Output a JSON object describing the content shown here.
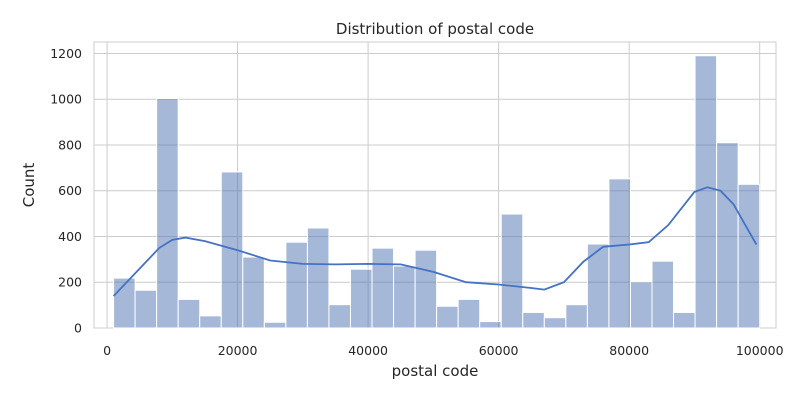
{
  "chart_data": {
    "type": "bar",
    "title": "Distribution of postal code",
    "xlabel": "postal code",
    "ylabel": "Count",
    "xlim": [
      -2000,
      102500
    ],
    "ylim": [
      0,
      1250
    ],
    "xticks": [
      0,
      20000,
      40000,
      60000,
      80000,
      100000
    ],
    "yticks": [
      0,
      200,
      400,
      600,
      800,
      1000,
      1200
    ],
    "grid": true,
    "bar_color": "#4c72b0",
    "bins": [
      {
        "x0": 1000,
        "x1": 4300,
        "count": 218
      },
      {
        "x0": 4300,
        "x1": 7600,
        "count": 165
      },
      {
        "x0": 7600,
        "x1": 10900,
        "count": 1003
      },
      {
        "x0": 10900,
        "x1": 14200,
        "count": 125
      },
      {
        "x0": 14200,
        "x1": 17500,
        "count": 53
      },
      {
        "x0": 17500,
        "x1": 20800,
        "count": 682
      },
      {
        "x0": 20800,
        "x1": 24100,
        "count": 310
      },
      {
        "x0": 24100,
        "x1": 27400,
        "count": 25
      },
      {
        "x0": 27400,
        "x1": 30700,
        "count": 375
      },
      {
        "x0": 30700,
        "x1": 34000,
        "count": 437
      },
      {
        "x0": 34000,
        "x1": 37300,
        "count": 102
      },
      {
        "x0": 37300,
        "x1": 40600,
        "count": 257
      },
      {
        "x0": 40600,
        "x1": 43900,
        "count": 349
      },
      {
        "x0": 43900,
        "x1": 47200,
        "count": 271
      },
      {
        "x0": 47200,
        "x1": 50500,
        "count": 340
      },
      {
        "x0": 50500,
        "x1": 53800,
        "count": 95
      },
      {
        "x0": 53800,
        "x1": 57100,
        "count": 125
      },
      {
        "x0": 57100,
        "x1": 60400,
        "count": 28
      },
      {
        "x0": 60400,
        "x1": 63700,
        "count": 498
      },
      {
        "x0": 63700,
        "x1": 67000,
        "count": 68
      },
      {
        "x0": 67000,
        "x1": 70300,
        "count": 45
      },
      {
        "x0": 70300,
        "x1": 73600,
        "count": 102
      },
      {
        "x0": 73600,
        "x1": 76900,
        "count": 367
      },
      {
        "x0": 76900,
        "x1": 80200,
        "count": 652
      },
      {
        "x0": 80200,
        "x1": 83500,
        "count": 202
      },
      {
        "x0": 83500,
        "x1": 86800,
        "count": 292
      },
      {
        "x0": 86800,
        "x1": 90100,
        "count": 68
      },
      {
        "x0": 90100,
        "x1": 93400,
        "count": 1190
      },
      {
        "x0": 93400,
        "x1": 96700,
        "count": 810
      },
      {
        "x0": 96700,
        "x1": 100000,
        "count": 628
      }
    ],
    "kde": {
      "x": [
        1000,
        4000,
        8000,
        10000,
        12000,
        15000,
        20000,
        25000,
        30000,
        35000,
        40000,
        45000,
        50000,
        55000,
        60000,
        65000,
        67000,
        70000,
        73000,
        76000,
        80000,
        83000,
        86000,
        90000,
        92000,
        94000,
        96000,
        98000,
        99500
      ],
      "y": [
        140,
        230,
        350,
        385,
        395,
        380,
        340,
        295,
        280,
        278,
        280,
        278,
        245,
        200,
        190,
        175,
        168,
        200,
        290,
        355,
        365,
        375,
        450,
        595,
        615,
        600,
        540,
        440,
        365
      ]
    }
  }
}
